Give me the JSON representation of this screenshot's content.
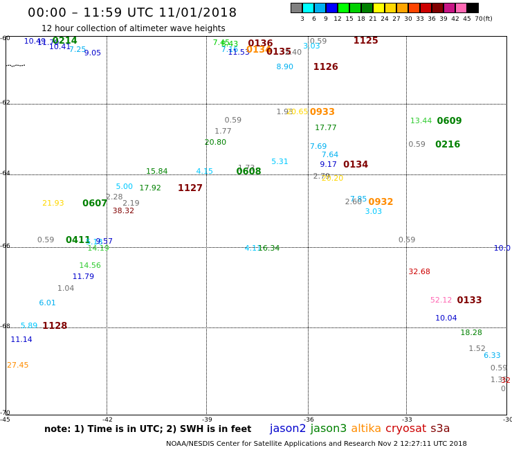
{
  "header": {
    "title": "00:00 – 11:59 UTC 11/01/2018",
    "subtitle": "12 hour collection of altimeter wave heights"
  },
  "scale": {
    "unit": "(ft)",
    "items": [
      {
        "label": "3",
        "color": "#808080"
      },
      {
        "label": "6",
        "color": "#00ffff"
      },
      {
        "label": "9",
        "color": "#00b0f0"
      },
      {
        "label": "12",
        "color": "#0000ff"
      },
      {
        "label": "15",
        "color": "#00ff00"
      },
      {
        "label": "18",
        "color": "#00d000"
      },
      {
        "label": "21",
        "color": "#008000"
      },
      {
        "label": "24",
        "color": "#ffff00"
      },
      {
        "label": "27",
        "color": "#ffd700"
      },
      {
        "label": "30",
        "color": "#ffa500"
      },
      {
        "label": "33",
        "color": "#ff4500"
      },
      {
        "label": "36",
        "color": "#cc0000"
      },
      {
        "label": "39",
        "color": "#800000"
      },
      {
        "label": "42",
        "color": "#c71585"
      },
      {
        "label": "45",
        "color": "#ff69b4"
      },
      {
        "label": "70",
        "color": "#000000"
      }
    ]
  },
  "axes": {
    "x_ticks": [
      "-45",
      "-42",
      "-39",
      "-36",
      "-33",
      "-30"
    ],
    "y_ticks": [
      "-60",
      "-62",
      "-64",
      "-66",
      "-68",
      "-70"
    ]
  },
  "observations": [
    {
      "text": "10.49",
      "lon": -44.45,
      "lat": -60.06,
      "color": "#0000cc",
      "kind": "v"
    },
    {
      "text": "11.70",
      "lon": -44.05,
      "lat": -60.1,
      "color": "#0000cc",
      "kind": "v"
    },
    {
      "text": "0214",
      "lon": -43.6,
      "lat": -60.04,
      "color": "#008000",
      "kind": "t"
    },
    {
      "text": "10.41",
      "lon": -43.7,
      "lat": -60.24,
      "color": "#0000cc",
      "kind": "v"
    },
    {
      "text": "7.25",
      "lon": -43.1,
      "lat": -60.33,
      "color": "#00b0f0",
      "kind": "v"
    },
    {
      "text": "9.05",
      "lon": -42.65,
      "lat": -60.42,
      "color": "#0000cc",
      "kind": "v"
    },
    {
      "text": "7.45",
      "lon": -38.8,
      "lat": -60.11,
      "color": "#00cc00",
      "kind": "v"
    },
    {
      "text": "8.43",
      "lon": -38.55,
      "lat": -60.15,
      "color": "#00cc00",
      "kind": "v"
    },
    {
      "text": "7.16",
      "lon": -38.55,
      "lat": -60.33,
      "color": "#00b0f0",
      "kind": "v"
    },
    {
      "text": "11.53",
      "lon": -38.35,
      "lat": -60.4,
      "color": "#0000cc",
      "kind": "v"
    },
    {
      "text": "0136",
      "lon": -37.75,
      "lat": -60.13,
      "color": "#800000",
      "kind": "t"
    },
    {
      "text": "0134",
      "lon": -37.8,
      "lat": -60.32,
      "color": "#ff8c00",
      "kind": "t"
    },
    {
      "text": "0135",
      "lon": -37.2,
      "lat": -60.38,
      "color": "#800000",
      "kind": "t"
    },
    {
      "text": "0.59",
      "lon": -35.9,
      "lat": -60.06,
      "color": "#707070",
      "kind": "v"
    },
    {
      "text": "1125",
      "lon": -34.6,
      "lat": -60.04,
      "color": "#800000",
      "kind": "t"
    },
    {
      "text": "3.03",
      "lon": -36.1,
      "lat": -60.22,
      "color": "#00c8ff",
      "kind": "v"
    },
    {
      "text": "2.40",
      "lon": -36.65,
      "lat": -60.4,
      "color": "#707070",
      "kind": "v"
    },
    {
      "text": "8.90",
      "lon": -36.9,
      "lat": -60.86,
      "color": "#00b0f0",
      "kind": "v"
    },
    {
      "text": "1126",
      "lon": -35.8,
      "lat": -60.86,
      "color": "#800000",
      "kind": "t"
    },
    {
      "text": "1.93",
      "lon": -36.9,
      "lat": -62.23,
      "color": "#707070",
      "kind": "v"
    },
    {
      "text": "20.65",
      "lon": -36.6,
      "lat": -62.23,
      "color": "#ffd700",
      "kind": "v"
    },
    {
      "text": "0933",
      "lon": -35.9,
      "lat": -62.23,
      "color": "#ff8c00",
      "kind": "t"
    },
    {
      "text": "0.59",
      "lon": -38.45,
      "lat": -62.47,
      "color": "#707070",
      "kind": "v"
    },
    {
      "text": "17.77",
      "lon": -35.75,
      "lat": -62.68,
      "color": "#008000",
      "kind": "v"
    },
    {
      "text": "13.44",
      "lon": -32.9,
      "lat": -62.49,
      "color": "#33cc33",
      "kind": "v"
    },
    {
      "text": "0609",
      "lon": -32.1,
      "lat": -62.49,
      "color": "#008000",
      "kind": "t"
    },
    {
      "text": "1.77",
      "lon": -38.75,
      "lat": -62.79,
      "color": "#707070",
      "kind": "v"
    },
    {
      "text": "20.80",
      "lon": -39.05,
      "lat": -63.09,
      "color": "#008000",
      "kind": "v"
    },
    {
      "text": "0.59",
      "lon": -32.95,
      "lat": -63.15,
      "color": "#707070",
      "kind": "v"
    },
    {
      "text": "0216",
      "lon": -32.15,
      "lat": -63.15,
      "color": "#008000",
      "kind": "t"
    },
    {
      "text": "7.69",
      "lon": -35.9,
      "lat": -63.22,
      "color": "#00b0f0",
      "kind": "v"
    },
    {
      "text": "7.64",
      "lon": -35.55,
      "lat": -63.45,
      "color": "#00b0f0",
      "kind": "v"
    },
    {
      "text": "5.31",
      "lon": -37.05,
      "lat": -63.64,
      "color": "#00c8ff",
      "kind": "v"
    },
    {
      "text": "9.17",
      "lon": -35.6,
      "lat": -63.72,
      "color": "#0000cc",
      "kind": "v"
    },
    {
      "text": "0134",
      "lon": -34.9,
      "lat": -63.72,
      "color": "#800000",
      "kind": "t"
    },
    {
      "text": "15.84",
      "lon": -40.8,
      "lat": -63.92,
      "color": "#008000",
      "kind": "v"
    },
    {
      "text": "4.15",
      "lon": -39.3,
      "lat": -63.92,
      "color": "#00c8ff",
      "kind": "v"
    },
    {
      "text": "1.73",
      "lon": -38.05,
      "lat": -63.82,
      "color": "#707070",
      "kind": "v"
    },
    {
      "text": "0608",
      "lon": -38.1,
      "lat": -63.92,
      "color": "#008000",
      "kind": "t"
    },
    {
      "text": "2.79",
      "lon": -35.8,
      "lat": -64.06,
      "color": "#707070",
      "kind": "v"
    },
    {
      "text": "20.20",
      "lon": -35.55,
      "lat": -64.11,
      "color": "#ffd700",
      "kind": "v"
    },
    {
      "text": "5.00",
      "lon": -41.7,
      "lat": -64.34,
      "color": "#00c8ff",
      "kind": "v"
    },
    {
      "text": "17.92",
      "lon": -41.0,
      "lat": -64.39,
      "color": "#008000",
      "kind": "v"
    },
    {
      "text": "1127",
      "lon": -39.85,
      "lat": -64.39,
      "color": "#800000",
      "kind": "t"
    },
    {
      "text": "2.28",
      "lon": -42.0,
      "lat": -64.63,
      "color": "#707070",
      "kind": "v"
    },
    {
      "text": "21.93",
      "lon": -43.9,
      "lat": -64.8,
      "color": "#ffd700",
      "kind": "v"
    },
    {
      "text": "0607",
      "lon": -42.7,
      "lat": -64.8,
      "color": "#008000",
      "kind": "t"
    },
    {
      "text": "2.19",
      "lon": -41.5,
      "lat": -64.8,
      "color": "#707070",
      "kind": "v"
    },
    {
      "text": "38.32",
      "lon": -41.8,
      "lat": -65.01,
      "color": "#800000",
      "kind": "v"
    },
    {
      "text": "7.85",
      "lon": -34.7,
      "lat": -64.69,
      "color": "#00b0f0",
      "kind": "v"
    },
    {
      "text": "2.60",
      "lon": -34.85,
      "lat": -64.76,
      "color": "#707070",
      "kind": "v"
    },
    {
      "text": "0932",
      "lon": -34.15,
      "lat": -64.76,
      "color": "#ff8c00",
      "kind": "t"
    },
    {
      "text": "3.03",
      "lon": -34.25,
      "lat": -65.03,
      "color": "#00c8ff",
      "kind": "v"
    },
    {
      "text": "0.59",
      "lon": -44.05,
      "lat": -65.81,
      "color": "#707070",
      "kind": "v"
    },
    {
      "text": "0411",
      "lon": -43.2,
      "lat": -65.81,
      "color": "#008000",
      "kind": "t"
    },
    {
      "text": "5.18",
      "lon": -42.6,
      "lat": -65.87,
      "color": "#00c8ff",
      "kind": "v"
    },
    {
      "text": "9.57",
      "lon": -42.3,
      "lat": -65.84,
      "color": "#0000cc",
      "kind": "v"
    },
    {
      "text": "0.59",
      "lon": -33.25,
      "lat": -65.81,
      "color": "#707070",
      "kind": "v"
    },
    {
      "text": "14.19",
      "lon": -42.55,
      "lat": -66.04,
      "color": "#33cc33",
      "kind": "v"
    },
    {
      "text": "4.11",
      "lon": -37.85,
      "lat": -66.04,
      "color": "#00c8ff",
      "kind": "v"
    },
    {
      "text": "16.34",
      "lon": -37.45,
      "lat": -66.04,
      "color": "#008000",
      "kind": "v"
    },
    {
      "text": "10.0",
      "lon": -30.4,
      "lat": -66.04,
      "color": "#0000cc",
      "kind": "v"
    },
    {
      "text": "14.56",
      "lon": -42.8,
      "lat": -66.47,
      "color": "#33cc33",
      "kind": "v"
    },
    {
      "text": "32.68",
      "lon": -32.95,
      "lat": -66.62,
      "color": "#cc0000",
      "kind": "v"
    },
    {
      "text": "11.79",
      "lon": -43.0,
      "lat": -66.74,
      "color": "#0000cc",
      "kind": "v"
    },
    {
      "text": "1.04",
      "lon": -43.45,
      "lat": -67.03,
      "color": "#707070",
      "kind": "v"
    },
    {
      "text": "52.12",
      "lon": -32.3,
      "lat": -67.32,
      "color": "#ff69b4",
      "kind": "v"
    },
    {
      "text": "0133",
      "lon": -31.5,
      "lat": -67.32,
      "color": "#800000",
      "kind": "t"
    },
    {
      "text": "6.01",
      "lon": -44.0,
      "lat": -67.4,
      "color": "#00b0f0",
      "kind": "v"
    },
    {
      "text": "10.04",
      "lon": -32.15,
      "lat": -67.77,
      "color": "#0000cc",
      "kind": "v"
    },
    {
      "text": "5.89",
      "lon": -44.55,
      "lat": -67.96,
      "color": "#00c8ff",
      "kind": "v"
    },
    {
      "text": "1128",
      "lon": -43.9,
      "lat": -67.96,
      "color": "#800000",
      "kind": "t"
    },
    {
      "text": "18.28",
      "lon": -31.4,
      "lat": -68.13,
      "color": "#008000",
      "kind": "v"
    },
    {
      "text": "11.14",
      "lon": -44.85,
      "lat": -68.29,
      "color": "#0000cc",
      "kind": "v"
    },
    {
      "text": "1.52",
      "lon": -31.15,
      "lat": -68.5,
      "color": "#707070",
      "kind": "v"
    },
    {
      "text": "6.33",
      "lon": -30.7,
      "lat": -68.66,
      "color": "#00b0f0",
      "kind": "v"
    },
    {
      "text": "27.45",
      "lon": -45.3,
      "lat": -68.88,
      "color": "#ff8c00",
      "kind": "v"
    },
    {
      "text": "0.59",
      "lon": -30.5,
      "lat": -68.95,
      "color": "#707070",
      "kind": "v"
    },
    {
      "text": "1.35",
      "lon": -30.5,
      "lat": -69.22,
      "color": "#707070",
      "kind": "v"
    },
    {
      "text": "32",
      "lon": -30.15,
      "lat": -69.23,
      "color": "#cc0000",
      "kind": "v"
    },
    {
      "text": "0",
      "lon": -30.15,
      "lat": -69.43,
      "color": "#707070",
      "kind": "v"
    }
  ],
  "note": "note: 1) Time is in UTC; 2) SWH is in feet",
  "legend": [
    {
      "label": "jason2",
      "color": "#0000cc"
    },
    {
      "label": "jason3",
      "color": "#008000"
    },
    {
      "label": "altika",
      "color": "#ff8c00"
    },
    {
      "label": "cryosat",
      "color": "#cc0000"
    },
    {
      "label": "s3a",
      "color": "#800000"
    }
  ],
  "credit": "NOAA/NESDIS Center for Satellite Applications and Research   Nov  2 12:27:11 UTC 2018"
}
